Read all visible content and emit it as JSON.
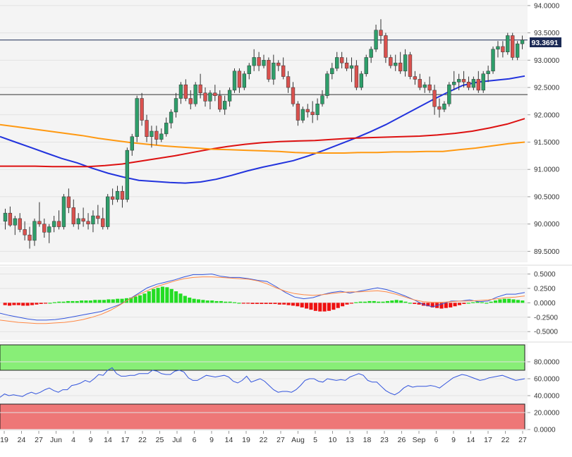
{
  "chart_data": [
    {
      "type": "candlestick",
      "panel": "price",
      "title": "",
      "y_ticks": [
        "94.0000",
        "93.5000",
        "93.0000",
        "92.5000",
        "92.0000",
        "91.5000",
        "91.0000",
        "90.5000",
        "90.0000",
        "89.5000"
      ],
      "ylim": [
        89.35,
        94.05
      ],
      "last_price_label": "93.3691",
      "horizontal_lines": [
        93.369,
        92.37
      ],
      "candles": [
        [
          90.05,
          90.28,
          89.9,
          90.2
        ],
        [
          90.2,
          90.32,
          89.95,
          89.98
        ],
        [
          89.98,
          90.15,
          89.8,
          90.1
        ],
        [
          90.1,
          90.2,
          89.85,
          89.9
        ],
        [
          89.9,
          90.05,
          89.7,
          89.8
        ],
        [
          89.8,
          89.95,
          89.55,
          89.7
        ],
        [
          89.7,
          90.1,
          89.6,
          90.05
        ],
        [
          90.05,
          90.4,
          89.95,
          90.0
        ],
        [
          90.0,
          90.1,
          89.75,
          89.85
        ],
        [
          89.85,
          90.0,
          89.65,
          89.95
        ],
        [
          89.95,
          90.15,
          89.85,
          90.05
        ],
        [
          90.05,
          90.25,
          89.9,
          89.95
        ],
        [
          89.95,
          90.55,
          89.9,
          90.5
        ],
        [
          90.5,
          90.65,
          90.2,
          90.3
        ],
        [
          90.3,
          90.45,
          89.95,
          90.0
        ],
        [
          90.0,
          90.2,
          89.9,
          90.1
        ],
        [
          90.1,
          90.3,
          89.95,
          90.05
        ],
        [
          90.05,
          90.2,
          89.9,
          90.0
        ],
        [
          90.0,
          90.25,
          89.85,
          90.15
        ],
        [
          90.15,
          90.35,
          90.0,
          90.1
        ],
        [
          90.1,
          90.3,
          89.9,
          89.95
        ],
        [
          89.95,
          90.55,
          89.9,
          90.5
        ],
        [
          90.5,
          90.65,
          90.35,
          90.45
        ],
        [
          90.45,
          90.7,
          90.4,
          90.6
        ],
        [
          90.6,
          90.7,
          90.3,
          90.45
        ],
        [
          90.45,
          91.4,
          90.4,
          91.35
        ],
        [
          91.35,
          91.65,
          91.25,
          91.6
        ],
        [
          91.6,
          92.35,
          91.5,
          92.3
        ],
        [
          92.3,
          92.4,
          91.8,
          91.9
        ],
        [
          91.9,
          92.0,
          91.5,
          91.6
        ],
        [
          91.6,
          91.8,
          91.4,
          91.7
        ],
        [
          91.7,
          91.8,
          91.45,
          91.55
        ],
        [
          91.55,
          91.75,
          91.5,
          91.65
        ],
        [
          91.65,
          91.95,
          91.6,
          91.85
        ],
        [
          91.85,
          92.1,
          91.75,
          92.05
        ],
        [
          92.05,
          92.4,
          91.95,
          92.3
        ],
        [
          92.3,
          92.6,
          92.2,
          92.55
        ],
        [
          92.55,
          92.65,
          92.25,
          92.3
        ],
        [
          92.3,
          92.45,
          92.1,
          92.2
        ],
        [
          92.2,
          92.6,
          92.15,
          92.55
        ],
        [
          92.55,
          92.75,
          92.3,
          92.4
        ],
        [
          92.4,
          92.5,
          92.15,
          92.25
        ],
        [
          92.25,
          92.45,
          92.1,
          92.4
        ],
        [
          92.4,
          92.55,
          92.25,
          92.35
        ],
        [
          92.35,
          92.45,
          92.05,
          92.1
        ],
        [
          92.1,
          92.35,
          92.0,
          92.25
        ],
        [
          92.25,
          92.5,
          92.15,
          92.45
        ],
        [
          92.45,
          92.85,
          92.4,
          92.8
        ],
        [
          92.8,
          92.85,
          92.4,
          92.5
        ],
        [
          92.5,
          92.8,
          92.45,
          92.75
        ],
        [
          92.75,
          92.95,
          92.65,
          92.9
        ],
        [
          92.9,
          93.2,
          92.8,
          93.05
        ],
        [
          93.05,
          93.15,
          92.8,
          92.9
        ],
        [
          92.9,
          93.1,
          92.85,
          93.0
        ],
        [
          93.0,
          93.05,
          92.6,
          92.65
        ],
        [
          92.65,
          93.1,
          92.55,
          92.95
        ],
        [
          92.95,
          93.0,
          92.8,
          92.9
        ],
        [
          92.9,
          93.05,
          92.65,
          92.7
        ],
        [
          92.7,
          92.8,
          92.4,
          92.5
        ],
        [
          92.5,
          92.6,
          92.15,
          92.2
        ],
        [
          92.2,
          92.25,
          91.8,
          91.9
        ],
        [
          91.9,
          92.15,
          91.85,
          92.1
        ],
        [
          92.1,
          92.2,
          91.95,
          92.05
        ],
        [
          92.05,
          92.25,
          91.85,
          92.0
        ],
        [
          92.0,
          92.3,
          91.9,
          92.2
        ],
        [
          92.2,
          92.45,
          92.15,
          92.35
        ],
        [
          92.35,
          92.8,
          92.3,
          92.75
        ],
        [
          92.75,
          92.95,
          92.65,
          92.85
        ],
        [
          92.85,
          93.15,
          92.8,
          93.05
        ],
        [
          93.05,
          93.15,
          92.85,
          92.95
        ],
        [
          92.95,
          93.05,
          92.8,
          92.85
        ],
        [
          92.85,
          93.05,
          92.6,
          92.9
        ],
        [
          92.9,
          93.0,
          92.45,
          92.5
        ],
        [
          92.5,
          92.8,
          92.45,
          92.75
        ],
        [
          92.75,
          93.1,
          92.7,
          93.05
        ],
        [
          93.05,
          93.25,
          92.95,
          93.2
        ],
        [
          93.2,
          93.65,
          93.15,
          93.55
        ],
        [
          93.55,
          93.75,
          93.3,
          93.45
        ],
        [
          93.45,
          93.5,
          92.95,
          93.05
        ],
        [
          93.05,
          93.1,
          92.85,
          92.9
        ],
        [
          92.9,
          93.1,
          92.8,
          92.95
        ],
        [
          92.95,
          93.15,
          92.75,
          92.8
        ],
        [
          92.8,
          93.2,
          92.7,
          93.1
        ],
        [
          93.1,
          93.15,
          92.65,
          92.7
        ],
        [
          92.7,
          92.8,
          92.55,
          92.65
        ],
        [
          92.65,
          92.75,
          92.45,
          92.5
        ],
        [
          92.5,
          92.6,
          92.4,
          92.55
        ],
        [
          92.55,
          92.7,
          92.4,
          92.45
        ],
        [
          92.45,
          92.55,
          92.0,
          92.15
        ],
        [
          92.15,
          92.3,
          91.95,
          92.1
        ],
        [
          92.1,
          92.25,
          92.05,
          92.2
        ],
        [
          92.2,
          92.6,
          92.15,
          92.55
        ],
        [
          92.55,
          92.8,
          92.45,
          92.6
        ],
        [
          92.6,
          92.75,
          92.45,
          92.65
        ],
        [
          92.65,
          92.8,
          92.5,
          92.6
        ],
        [
          92.6,
          92.7,
          92.45,
          92.5
        ],
        [
          92.5,
          92.7,
          92.45,
          92.65
        ],
        [
          92.65,
          92.8,
          92.4,
          92.45
        ],
        [
          92.45,
          92.8,
          92.4,
          92.75
        ],
        [
          92.75,
          92.9,
          92.6,
          92.8
        ],
        [
          92.8,
          93.25,
          92.75,
          93.2
        ],
        [
          93.2,
          93.35,
          93.05,
          93.25
        ],
        [
          93.25,
          93.35,
          93.05,
          93.15
        ],
        [
          93.15,
          93.5,
          93.1,
          93.45
        ],
        [
          93.45,
          93.5,
          93.0,
          93.05
        ],
        [
          93.05,
          93.35,
          93.0,
          93.3
        ],
        [
          93.3,
          93.45,
          93.2,
          93.37
        ]
      ],
      "indicators": [
        {
          "name": "",
          "color": "#2233dd",
          "values": [
            91.6,
            91.5,
            91.4,
            91.3,
            91.2,
            91.12,
            91.02,
            90.93,
            90.86,
            90.8,
            90.78,
            90.76,
            90.75,
            90.77,
            90.82,
            90.89,
            90.97,
            91.04,
            91.1,
            91.16,
            91.25,
            91.35,
            91.46,
            91.57,
            91.69,
            91.82,
            91.97,
            92.12,
            92.27,
            92.41,
            92.54,
            92.6,
            92.63,
            92.66,
            92.71
          ]
        },
        {
          "name": "",
          "color": "#dd1111",
          "values": [
            91.06,
            91.06,
            91.06,
            91.05,
            91.05,
            91.05,
            91.07,
            91.1,
            91.15,
            91.2,
            91.25,
            91.31,
            91.37,
            91.42,
            91.46,
            91.49,
            91.51,
            91.52,
            91.53,
            91.55,
            91.57,
            91.58,
            91.59,
            91.6,
            91.61,
            91.63,
            91.66,
            91.7,
            91.76,
            91.83,
            91.93
          ]
        },
        {
          "name": "",
          "color": "#ff9911",
          "values": [
            91.82,
            91.78,
            91.74,
            91.7,
            91.66,
            91.62,
            91.57,
            91.53,
            91.49,
            91.46,
            91.43,
            91.41,
            91.39,
            91.37,
            91.36,
            91.35,
            91.34,
            91.33,
            91.31,
            91.3,
            91.3,
            91.3,
            91.31,
            91.31,
            91.32,
            91.32,
            91.33,
            91.33,
            91.36,
            91.39,
            91.43,
            91.47,
            91.5
          ]
        }
      ]
    },
    {
      "type": "histogram",
      "panel": "macd",
      "title": "",
      "y_ticks": [
        "0.5000",
        "0.2500",
        "0.0000",
        "-0.2500",
        "-0.5000"
      ],
      "ylim": [
        -0.62,
        0.58
      ],
      "histogram": [
        -0.04,
        -0.05,
        -0.04,
        -0.04,
        -0.05,
        -0.05,
        -0.04,
        -0.03,
        -0.02,
        -0.01,
        0.0,
        0.01,
        0.02,
        0.02,
        0.03,
        0.03,
        0.03,
        0.04,
        0.04,
        0.04,
        0.05,
        0.05,
        0.05,
        0.06,
        0.06,
        0.07,
        0.07,
        0.08,
        0.09,
        0.11,
        0.13,
        0.16,
        0.2,
        0.24,
        0.26,
        0.28,
        0.27,
        0.24,
        0.2,
        0.16,
        0.12,
        0.09,
        0.07,
        0.06,
        0.05,
        0.04,
        0.04,
        0.03,
        0.03,
        0.02,
        0.02,
        0.01,
        0.0,
        -0.01,
        -0.01,
        -0.02,
        -0.02,
        -0.02,
        -0.02,
        -0.02,
        -0.02,
        -0.03,
        -0.03,
        -0.04,
        -0.05,
        -0.06,
        -0.08,
        -0.1,
        -0.12,
        -0.14,
        -0.15,
        -0.15,
        -0.14,
        -0.12,
        -0.09,
        -0.06,
        -0.03,
        -0.01,
        0.01,
        0.02,
        0.02,
        0.03,
        0.03,
        0.02,
        0.02,
        0.03,
        0.04,
        0.05,
        0.04,
        0.02,
        0.0,
        -0.02,
        -0.03,
        -0.05,
        -0.06,
        -0.08,
        -0.09,
        -0.1,
        -0.09,
        -0.08,
        -0.06,
        -0.04,
        -0.02,
        0.0,
        0.01,
        0.02,
        0.01,
        0.0,
        0.02,
        0.04,
        0.06,
        0.07,
        0.07,
        0.06,
        0.05,
        0.04
      ],
      "series": [
        {
          "name": "",
          "color": "#3355dd",
          "values": [
            -0.18,
            -0.22,
            -0.25,
            -0.28,
            -0.3,
            -0.3,
            -0.29,
            -0.27,
            -0.24,
            -0.21,
            -0.18,
            -0.15,
            -0.09,
            -0.03,
            0.06,
            0.16,
            0.26,
            0.32,
            0.36,
            0.4,
            0.45,
            0.49,
            0.49,
            0.5,
            0.46,
            0.44,
            0.44,
            0.42,
            0.39,
            0.37,
            0.28,
            0.18,
            0.1,
            0.07,
            0.09,
            0.14,
            0.18,
            0.2,
            0.17,
            0.2,
            0.23,
            0.26,
            0.23,
            0.18,
            0.12,
            0.05,
            -0.03,
            -0.07,
            -0.02,
            0.03,
            0.03,
            0.05,
            0.02,
            0.03,
            0.1,
            0.15,
            0.15,
            0.18
          ]
        },
        {
          "name": "",
          "color": "#ff8844",
          "values": [
            -0.3,
            -0.32,
            -0.34,
            -0.35,
            -0.36,
            -0.36,
            -0.35,
            -0.34,
            -0.32,
            -0.29,
            -0.25,
            -0.2,
            -0.13,
            -0.04,
            0.06,
            0.14,
            0.21,
            0.28,
            0.33,
            0.38,
            0.42,
            0.44,
            0.45,
            0.45,
            0.44,
            0.43,
            0.42,
            0.41,
            0.38,
            0.33,
            0.26,
            0.2,
            0.16,
            0.14,
            0.13,
            0.14,
            0.16,
            0.18,
            0.19,
            0.19,
            0.2,
            0.21,
            0.19,
            0.15,
            0.1,
            0.05,
            0.02,
            0.01,
            0.01,
            0.02,
            0.03,
            0.03,
            0.04,
            0.05,
            0.07,
            0.09,
            0.1,
            0.12
          ]
        }
      ]
    },
    {
      "type": "line",
      "panel": "rsi",
      "title": "",
      "y_ticks": [
        "80.0000",
        "60.0000",
        "40.0000",
        "20.0000",
        "0.0000"
      ],
      "ylim": [
        0,
        100
      ],
      "bands": [
        {
          "from": 70,
          "to": 100,
          "color": "#88ee77"
        },
        {
          "from": 0,
          "to": 30,
          "color": "#ee7777"
        }
      ],
      "series": [
        {
          "name": "",
          "color": "#3355dd",
          "values": [
            38,
            42,
            40,
            41,
            40,
            39,
            42,
            44,
            42,
            44,
            47,
            49,
            46,
            44,
            47,
            47,
            52,
            53,
            55,
            58,
            56,
            60,
            65,
            64,
            70,
            73,
            66,
            63,
            63,
            64,
            64,
            66,
            66,
            66,
            70,
            69,
            66,
            65,
            65,
            69,
            70,
            68,
            61,
            58,
            58,
            61,
            64,
            63,
            62,
            63,
            64,
            62,
            57,
            55,
            58,
            63,
            56,
            58,
            60,
            57,
            52,
            47,
            44,
            45,
            45,
            44,
            47,
            52,
            58,
            60,
            60,
            57,
            56,
            60,
            59,
            58,
            59,
            58,
            62,
            64,
            66,
            64,
            58,
            56,
            56,
            51,
            46,
            43,
            41,
            44,
            49,
            52,
            50,
            51,
            51,
            51,
            52,
            51,
            49,
            53,
            57,
            61,
            63,
            65,
            64,
            62,
            60,
            58,
            59,
            61,
            62,
            63,
            64,
            62,
            60,
            58,
            59,
            60
          ]
        }
      ]
    }
  ],
  "x_axis": {
    "labels": [
      "19",
      "24",
      "27",
      "Jun",
      "4",
      "9",
      "14",
      "17",
      "22",
      "25",
      "Jul",
      "6",
      "9",
      "14",
      "19",
      "22",
      "27",
      "Aug",
      "5",
      "10",
      "13",
      "18",
      "23",
      "26",
      "Sep",
      "6",
      "9",
      "14",
      "17",
      "22",
      "27"
    ]
  }
}
